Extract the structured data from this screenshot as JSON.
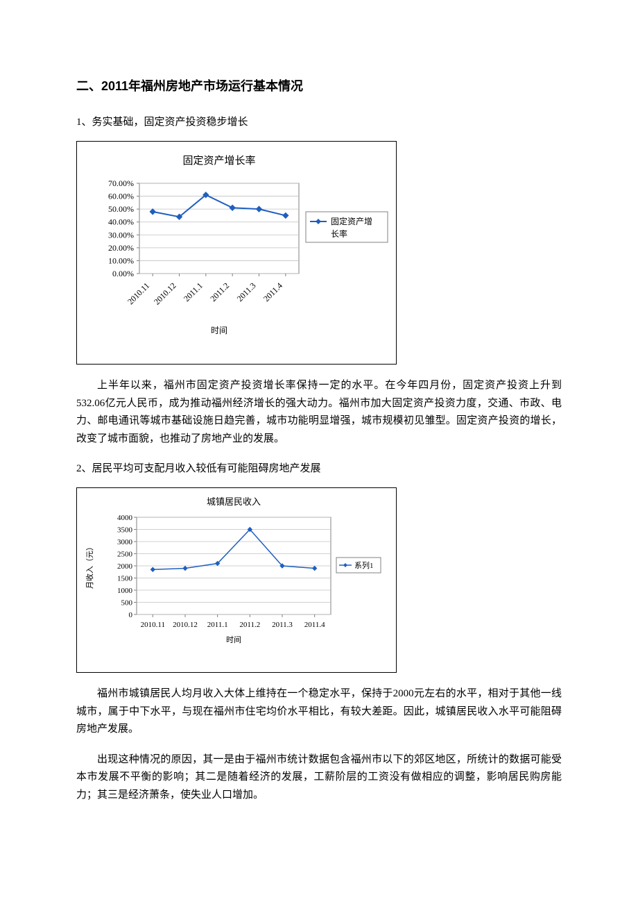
{
  "heading": "二、2011年福州房地产市场运行基本情况",
  "section1": {
    "subheading": "1、务实基础，固定资产投资稳步增长",
    "para": "上半年以来，福州市固定资产投资增长率保持一定的水平。在今年四月份，固定资产投资上升到532.06亿元人民币，成为推动福州经济增长的强大动力。福州市加大固定资产投资力度，交通、市政、电力、邮电通讯等城市基础设施日趋完善，城市功能明显增强，城市规模初见雏型。固定资产投资的增长，改变了城市面貌，也推动了房地产业的发展。"
  },
  "section2": {
    "subheading": "2、居民平均可支配月收入较低有可能阻碍房地产发展",
    "para1": "福州市城镇居民人均月收入大体上维持在一个稳定水平，保持于2000元左右的水平，相对于其他一线城市，属于中下水平，与现在福州市住宅均价水平相比，有较大差距。因此，城镇居民收入水平可能阻碍房地产发展。",
    "para2": "出现这种情况的原因，其一是由于福州市统计数据包含福州市以下的郊区地区，所统计的数据可能受本市发展不平衡的影响；其二是随着经济的发展，工薪阶层的工资没有做相应的调整，影响居民购房能力；其三是经济萧条，使失业人口增加。"
  },
  "chart1": {
    "type": "line",
    "title": "固定资产增长率",
    "title_fontsize": 15,
    "xlabel": "时间",
    "legend_label": "固定资产增长率",
    "categories": [
      "2010.11",
      "2010.12",
      "2011.1",
      "2011.2",
      "2011.3",
      "2011.4"
    ],
    "values": [
      0.48,
      0.44,
      0.61,
      0.51,
      0.5,
      0.45
    ],
    "ylim": [
      0,
      0.7
    ],
    "ytick_step": 0.1,
    "ytick_labels": [
      "0.00%",
      "10.00%",
      "20.00%",
      "30.00%",
      "40.00%",
      "50.00%",
      "60.00%",
      "70.00%"
    ],
    "line_color": "#1f5fbf",
    "marker_color": "#1f5fbf",
    "marker_size": 4,
    "line_width": 2,
    "background_color": "#ffffff",
    "grid_color": "#c0c0c0",
    "border_color": "#808080",
    "text_color": "#000000",
    "label_fontsize": 12,
    "tick_fontsize": 12
  },
  "chart2": {
    "type": "line",
    "title": "城镇居民收入",
    "title_fontsize": 13,
    "xlabel": "时间",
    "ylabel": "月收入（元）",
    "legend_label": "系列1",
    "categories": [
      "2010.11",
      "2010.12",
      "2011.1",
      "2011.2",
      "2011.3",
      "2011.4"
    ],
    "values": [
      1850,
      1900,
      2100,
      3500,
      2000,
      1900
    ],
    "ylim": [
      0,
      4000
    ],
    "ytick_step": 500,
    "ytick_labels": [
      "0",
      "500",
      "1000",
      "1500",
      "2000",
      "2500",
      "3000",
      "3500",
      "4000"
    ],
    "line_color": "#1f5fbf",
    "marker_color": "#1f5fbf",
    "marker_size": 3,
    "line_width": 1.5,
    "background_color": "#ffffff",
    "grid_color": "#c0c0c0",
    "border_color": "#808080",
    "text_color": "#000000",
    "label_fontsize": 11,
    "tick_fontsize": 11
  }
}
